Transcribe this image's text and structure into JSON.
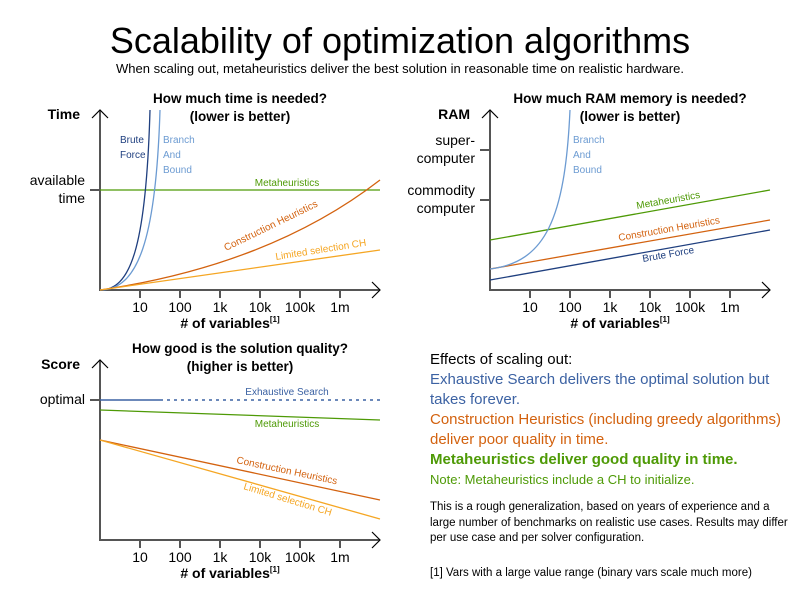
{
  "title": "Scalability of optimization algorithms",
  "subtitle": "When scaling out, metaheuristics deliver the best solution in reasonable time on realistic hardware.",
  "colors": {
    "brute_force": "#1f3f7f",
    "branch_and_bound": "#6c9bd2",
    "exhaustive": "#3c62a3",
    "metaheuristics": "#4e9a06",
    "construction": "#d3620f",
    "limited": "#f5a623",
    "axis": "#555555"
  },
  "x_ticks": [
    "10",
    "100",
    "1k",
    "10k",
    "100k",
    "1m"
  ],
  "x_label": "# of variables",
  "x_label_sup": "[1]",
  "chart_data": [
    {
      "type": "line",
      "title_line1": "How much time is needed?",
      "title_line2": "(lower is better)",
      "ylabel": "Time",
      "y_ticks": [
        {
          "line1": "available",
          "line2": "time"
        }
      ],
      "series": [
        {
          "name": "Brute Force",
          "label_lines": [
            "Brute",
            "Force"
          ]
        },
        {
          "name": "Branch And Bound",
          "label_lines": [
            "Branch",
            "And",
            "Bound"
          ]
        },
        {
          "name": "Metaheuristics",
          "label_lines": [
            "Metaheuristics"
          ]
        },
        {
          "name": "Construction Heuristics",
          "label_lines": [
            "Construction Heuristics"
          ]
        },
        {
          "name": "Limited selection CH",
          "label_lines": [
            "Limited selection CH"
          ]
        }
      ]
    },
    {
      "type": "line",
      "title_line1": "How much RAM memory is needed?",
      "title_line2": "(lower is better)",
      "ylabel": "RAM",
      "y_ticks": [
        {
          "line1": "super-",
          "line2": "computer"
        },
        {
          "line1": "commodity",
          "line2": "computer"
        }
      ],
      "series": [
        {
          "name": "Branch And Bound",
          "label_lines": [
            "Branch",
            "And",
            "Bound"
          ]
        },
        {
          "name": "Metaheuristics",
          "label_lines": [
            "Metaheuristics"
          ]
        },
        {
          "name": "Construction Heuristics",
          "label_lines": [
            "Construction Heuristics"
          ]
        },
        {
          "name": "Brute Force",
          "label_lines": [
            "Brute Force"
          ]
        }
      ]
    },
    {
      "type": "line",
      "title_line1": "How good is the solution quality?",
      "title_line2": "(higher is better)",
      "ylabel": "Score",
      "y_ticks": [
        {
          "line1": "optimal",
          "line2": ""
        }
      ],
      "series": [
        {
          "name": "Exhaustive Search",
          "label_lines": [
            "Exhaustive Search"
          ]
        },
        {
          "name": "Metaheuristics",
          "label_lines": [
            "Metaheuristics"
          ]
        },
        {
          "name": "Construction Heuristics",
          "label_lines": [
            "Construction Heuristics"
          ]
        },
        {
          "name": "Limited selection CH",
          "label_lines": [
            "Limited selection CH"
          ]
        }
      ]
    }
  ],
  "effects": {
    "heading": "Effects of scaling out:",
    "exhaustive": "Exhaustive Search delivers the optimal solution but takes forever.",
    "construction": "Construction Heuristics (including greedy algorithms) deliver poor quality in time.",
    "meta": "Metaheuristics deliver good quality in time.",
    "note": "Note: Metaheuristics include a CH to initialize."
  },
  "disclaimer": "This is a rough generalization, based on years of experience and a large number of benchmarks on realistic use cases. Results may differ per use case and per solver configuration.",
  "footnote": "[1] Vars with a large value range (binary vars scale much more)"
}
